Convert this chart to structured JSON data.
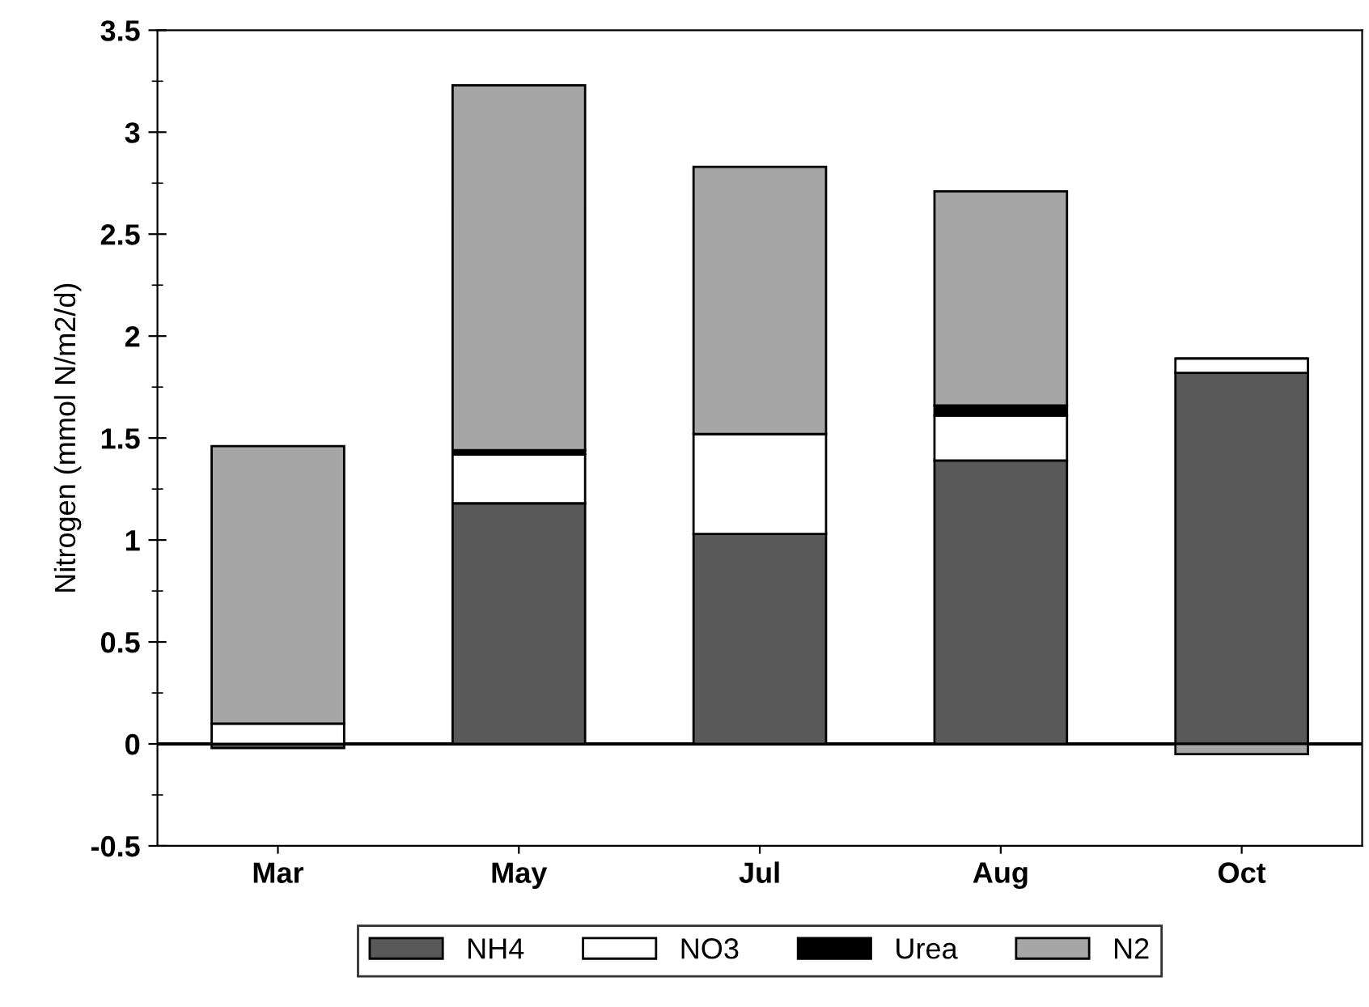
{
  "chart_data": {
    "type": "bar",
    "stacked": true,
    "ylabel": "Nitrogen (mmol N/m2/d)",
    "categories": [
      "Mar",
      "May",
      "Jul",
      "Aug",
      "Oct"
    ],
    "series": [
      {
        "name": "NH4",
        "color": "#595959",
        "values": [
          -0.02,
          1.18,
          1.03,
          1.39,
          1.82
        ]
      },
      {
        "name": "NO3",
        "color": "#ffffff",
        "values": [
          0.1,
          0.24,
          0.49,
          0.22,
          0.07
        ]
      },
      {
        "name": "Urea",
        "color": "#000000",
        "values": [
          0,
          0.02,
          0,
          0.05,
          0
        ]
      },
      {
        "name": "N2",
        "color": "#a6a6a6",
        "values": [
          1.36,
          1.79,
          1.31,
          1.05,
          -0.05
        ]
      }
    ],
    "ylim": [
      -0.5,
      3.5
    ],
    "yticks": [
      -0.5,
      0,
      0.5,
      1,
      1.5,
      2,
      2.5,
      3,
      3.5
    ],
    "ref_lines": [
      {
        "axis": "y",
        "value": 0
      }
    ],
    "grid": false,
    "legend": "bottom"
  }
}
